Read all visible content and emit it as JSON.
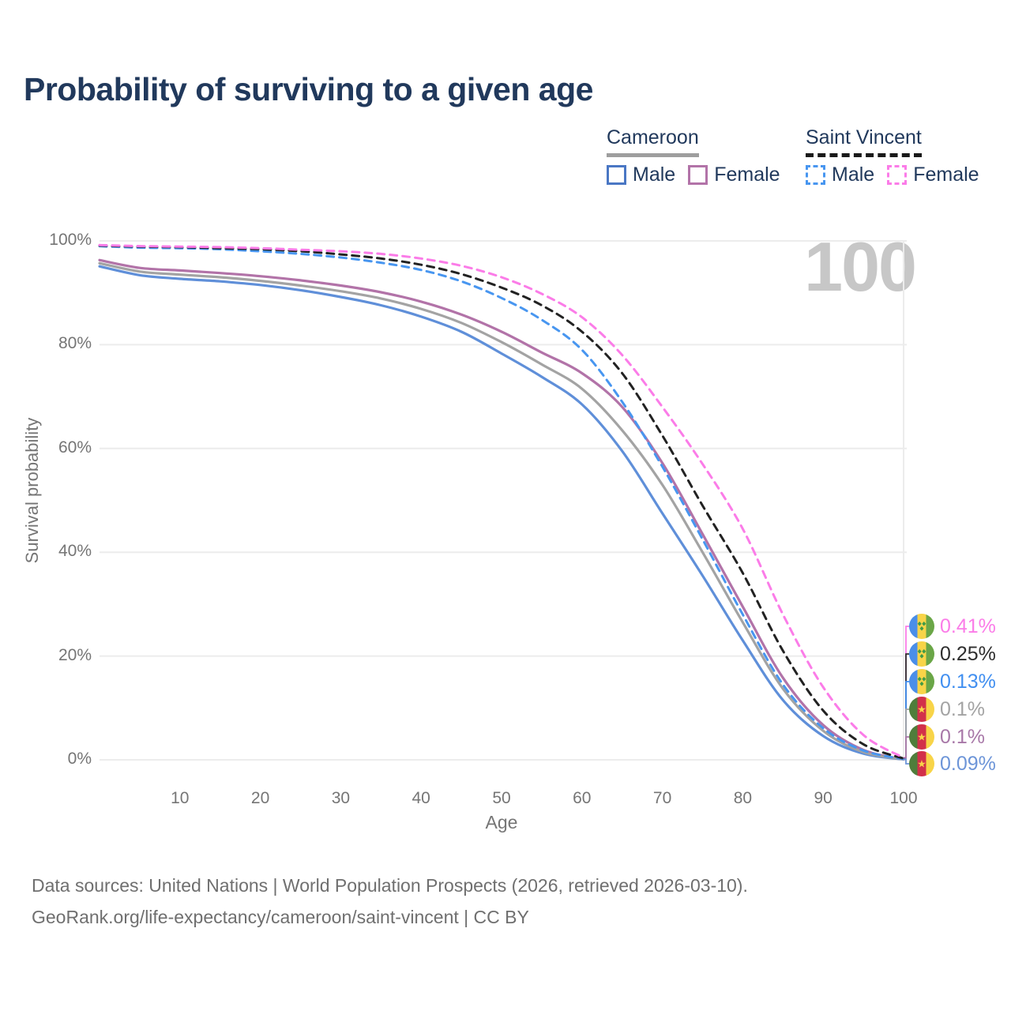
{
  "header": {
    "title": "Probability of surviving to a given age"
  },
  "watermark": "100",
  "legend": {
    "groups": [
      {
        "name": "Cameroon",
        "underline_style": "solid",
        "underline_color": "#9e9e9e",
        "items": [
          {
            "label": "Male",
            "color": "#4a77c4",
            "dashed": false
          },
          {
            "label": "Female",
            "color": "#b273a8",
            "dashed": false
          }
        ]
      },
      {
        "name": "Saint Vincent",
        "underline_style": "dashed",
        "underline_color": "#1a1a1a",
        "items": [
          {
            "label": "Male",
            "color": "#4896f0",
            "dashed": true
          },
          {
            "label": "Female",
            "color": "#fb7ce8",
            "dashed": true
          }
        ]
      }
    ]
  },
  "chart_data": {
    "type": "line",
    "title": "Probability of surviving to a given age",
    "xlabel": "Age",
    "ylabel": "Survival probability",
    "xlim": [
      0,
      100
    ],
    "ylim": [
      0,
      100
    ],
    "grid": "horizontal",
    "legend_position": "top-right",
    "x_ticks": [
      10,
      20,
      30,
      40,
      50,
      60,
      70,
      80,
      90,
      100
    ],
    "y_ticks": [
      {
        "label": "100%",
        "value": 100
      },
      {
        "label": "80%",
        "value": 80
      },
      {
        "label": "60%",
        "value": 60
      },
      {
        "label": "40%",
        "value": 40
      },
      {
        "label": "20%",
        "value": 20
      },
      {
        "label": "0%",
        "value": 0
      }
    ],
    "x": [
      0,
      5,
      10,
      15,
      20,
      25,
      30,
      35,
      40,
      45,
      50,
      55,
      60,
      65,
      70,
      75,
      80,
      85,
      90,
      95,
      100
    ],
    "series": [
      {
        "id": "sv-female",
        "name": "Saint Vincent Female",
        "color": "#fb7ce8",
        "dashed": true,
        "flag": "saint-vincent",
        "end_label": "0.41%",
        "end_label_color": "#fb7ce8",
        "values": [
          99.2,
          99.0,
          98.9,
          98.8,
          98.6,
          98.3,
          98.0,
          97.5,
          96.6,
          95.2,
          93.0,
          89.8,
          85.3,
          78.0,
          68.0,
          57.0,
          44.5,
          28.0,
          14.0,
          4.8,
          0.41
        ]
      },
      {
        "id": "sv-both",
        "name": "Saint Vincent Both sexes",
        "color": "#222222",
        "dashed": true,
        "flag": "saint-vincent",
        "end_label": "0.25%",
        "end_label_color": "#2e2e2e",
        "values": [
          99.1,
          98.9,
          98.8,
          98.6,
          98.4,
          98.0,
          97.4,
          96.6,
          95.4,
          93.6,
          91.0,
          87.6,
          82.5,
          74.5,
          62.5,
          49.0,
          36.0,
          21.0,
          9.5,
          3.0,
          0.25
        ]
      },
      {
        "id": "sv-male",
        "name": "Saint Vincent Male",
        "color": "#4896f0",
        "dashed": true,
        "flag": "saint-vincent",
        "end_label": "0.13%",
        "end_label_color": "#418ff0",
        "values": [
          99.0,
          98.7,
          98.6,
          98.4,
          98.0,
          97.5,
          96.8,
          95.8,
          94.4,
          92.2,
          89.0,
          84.8,
          79.0,
          69.0,
          56.5,
          42.5,
          28.0,
          14.5,
          6.1,
          1.8,
          0.13
        ]
      },
      {
        "id": "cameroon-both",
        "name": "Cameroon Both sexes",
        "color": "#a3a3a3",
        "dashed": false,
        "flag": "cameroon",
        "end_label": "0.1%",
        "end_label_color": "#a3a3a3",
        "values": [
          95.7,
          94.1,
          93.5,
          93.0,
          92.3,
          91.4,
          90.3,
          88.9,
          86.9,
          84.2,
          80.5,
          76.2,
          71.5,
          63.5,
          53.0,
          40.0,
          26.5,
          13.7,
          5.6,
          1.5,
          0.1
        ]
      },
      {
        "id": "cameroon-female",
        "name": "Cameroon Female",
        "color": "#b273a8",
        "dashed": false,
        "flag": "cameroon",
        "end_label": "0.1%",
        "end_label_color": "#a878a8",
        "values": [
          96.3,
          94.8,
          94.3,
          93.8,
          93.2,
          92.4,
          91.4,
          90.1,
          88.3,
          85.8,
          82.5,
          78.5,
          74.5,
          68.0,
          57.2,
          43.5,
          29.5,
          15.8,
          6.7,
          1.9,
          0.1
        ]
      },
      {
        "id": "cameroon-male",
        "name": "Cameroon Male",
        "color": "#5f8fd9",
        "dashed": false,
        "flag": "cameroon",
        "end_label": "0.09%",
        "end_label_color": "#6d95d8",
        "values": [
          95.1,
          93.4,
          92.7,
          92.2,
          91.5,
          90.5,
          89.2,
          87.6,
          85.4,
          82.5,
          78.3,
          73.8,
          68.5,
          59.5,
          47.5,
          35.5,
          23.0,
          11.5,
          4.6,
          1.2,
          0.09
        ]
      }
    ]
  },
  "footer": {
    "line1": "Data sources: United Nations | World Population Prospects (2026, retrieved 2026-03-10).",
    "line2": "GeoRank.org/life-expectancy/cameroon/saint-vincent | CC BY"
  }
}
